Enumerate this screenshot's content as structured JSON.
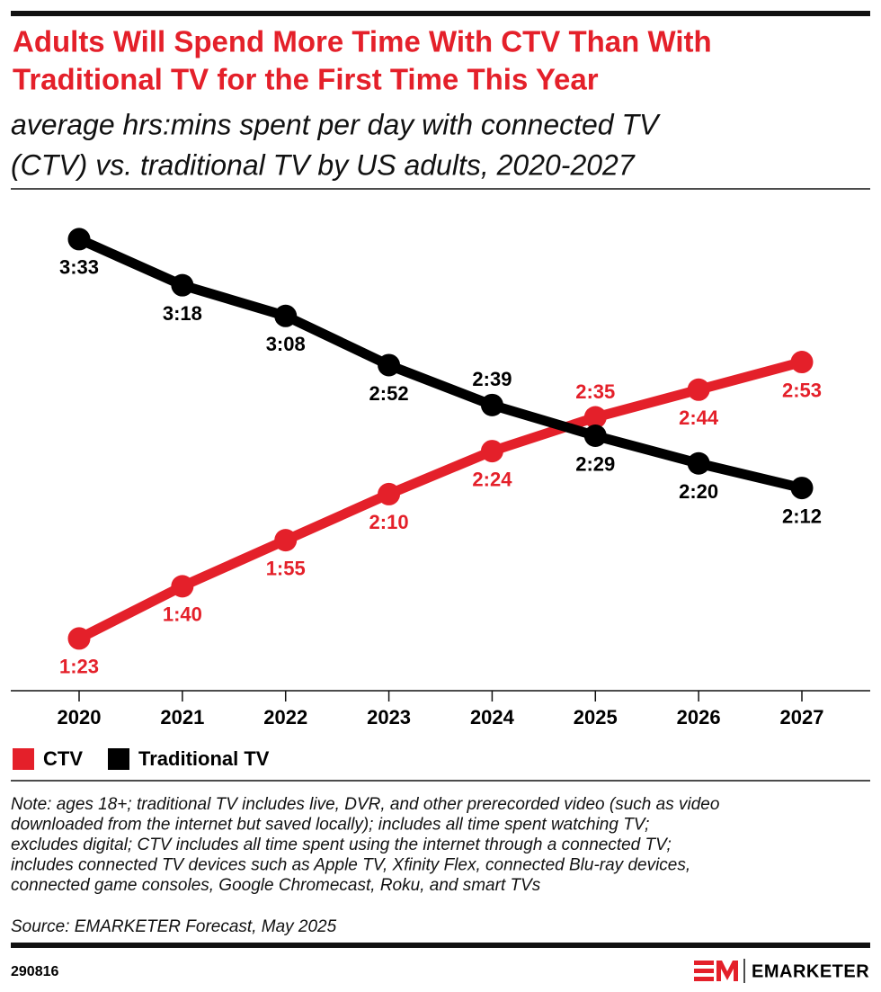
{
  "chart_data": {
    "type": "line",
    "title": [
      "Adults Will Spend More Time With CTV Than With",
      "Traditional TV for the First Time This Year"
    ],
    "subtitle": [
      "average hrs:mins spent per day with connected TV",
      "(CTV) vs. traditional TV by US adults, 2020-2027"
    ],
    "categories": [
      "2020",
      "2021",
      "2022",
      "2023",
      "2024",
      "2025",
      "2026",
      "2027"
    ],
    "series": [
      {
        "name": "CTV",
        "color": "#e4202a",
        "values": [
          83,
          100,
          115,
          130,
          144,
          155,
          164,
          173
        ],
        "value_labels": [
          "1:23",
          "1:40",
          "1:55",
          "2:10",
          "2:24",
          "2:35",
          "2:44",
          "2:53"
        ]
      },
      {
        "name": "Traditional TV",
        "color": "#000000",
        "values": [
          213,
          198,
          188,
          172,
          159,
          149,
          140,
          132
        ],
        "value_labels": [
          "3:33",
          "3:18",
          "3:08",
          "2:52",
          "2:39",
          "2:29",
          "2:20",
          "2:12"
        ]
      }
    ],
    "ylim": [
      66,
      220
    ],
    "grid": false,
    "legend": "bottom-left",
    "note": [
      "Note: ages 18+; traditional TV includes live, DVR, and other prerecorded video (such as video",
      "downloaded from the internet but saved locally); includes all time spent watching TV;",
      "excludes digital; CTV includes all time spent using the internet through a connected TV;",
      "includes connected TV devices such as Apple TV, Xfinity Flex, connected Blu-ray devices,",
      "connected game consoles, Google Chromecast, Roku, and smart TVs"
    ],
    "source": "Source: EMARKETER Forecast, May 2025",
    "chart_id": "290816",
    "brand": "EMARKETER"
  }
}
